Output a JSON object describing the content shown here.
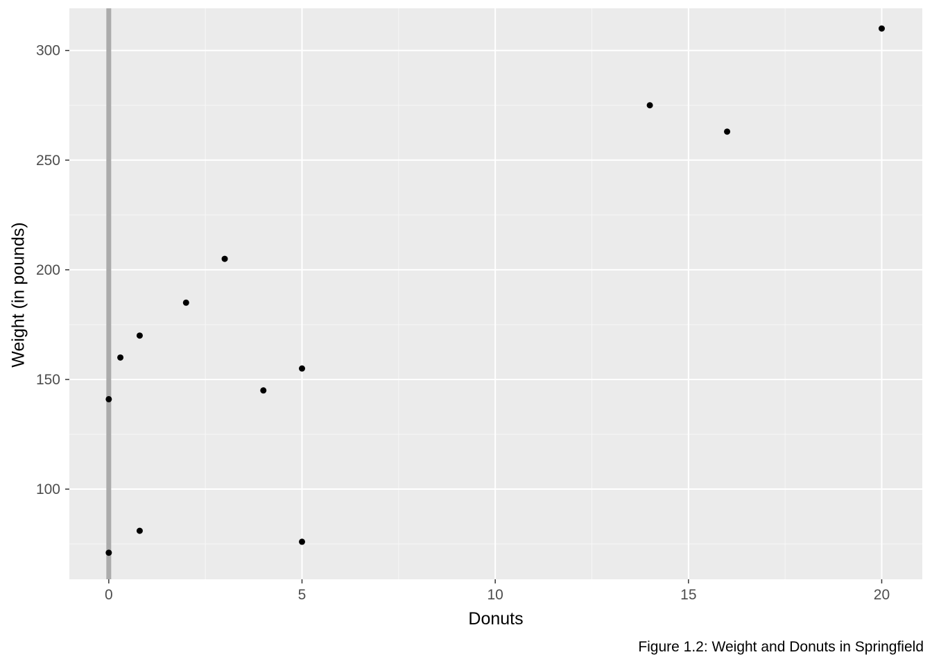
{
  "chart_data": {
    "type": "scatter",
    "title": "",
    "xlabel": "Donuts",
    "ylabel": "Weight (in pounds)",
    "caption": "Figure 1.2: Weight and Donuts in Springfield",
    "x_ticks": [
      0,
      5,
      10,
      15,
      20
    ],
    "y_ticks": [
      100,
      150,
      200,
      250,
      300
    ],
    "x_minor_ticks": [
      2.5,
      7.5,
      12.5,
      17.5
    ],
    "y_minor_ticks": [
      75,
      125,
      175,
      225,
      275
    ],
    "xlim": [
      -1.02,
      21.05
    ],
    "ylim": [
      58.9,
      319.2
    ],
    "grid": true,
    "legend": "none",
    "vline_x": 0,
    "points": [
      {
        "x": 0,
        "y": 71
      },
      {
        "x": 0,
        "y": 141
      },
      {
        "x": 0.3,
        "y": 160
      },
      {
        "x": 0.8,
        "y": 81
      },
      {
        "x": 0.8,
        "y": 170
      },
      {
        "x": 2,
        "y": 185
      },
      {
        "x": 3,
        "y": 205
      },
      {
        "x": 4,
        "y": 145
      },
      {
        "x": 5,
        "y": 76
      },
      {
        "x": 5,
        "y": 155
      },
      {
        "x": 14,
        "y": 275
      },
      {
        "x": 16,
        "y": 263
      },
      {
        "x": 20,
        "y": 310
      }
    ],
    "style": {
      "page_bg": "#FFFFFF",
      "panel_bg": "#EBEBEB",
      "grid_major": "#FFFFFF",
      "grid_minor": "#F7F7F7",
      "point_color": "#000000",
      "point_radius": 4.5,
      "vline_color": "#ABABAB",
      "vline_width": 7,
      "tick_mark_color": "#333333",
      "tick_label_color": "#4D4D4D",
      "axis_title_color": "#000000"
    }
  }
}
